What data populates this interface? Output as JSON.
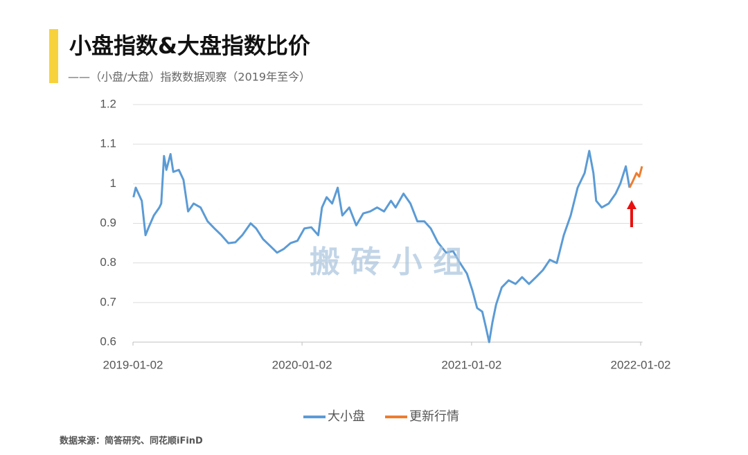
{
  "title": "小盘指数&大盘指数比价",
  "subtitle": "——（小盘/大盘）指数数据观察（2019年至今）",
  "source": "数据来源：简答研究、同花顺iFinD",
  "chart_data": {
    "type": "line",
    "watermark": "搬 砖 小 组",
    "xlim": [
      "2019-01-02",
      "2022-01-06"
    ],
    "xticks": [
      "2019-01-02",
      "2020-01-02",
      "2021-01-02",
      "2022-01-02"
    ],
    "ylim": [
      0.6,
      1.2
    ],
    "yticks": [
      0.6,
      0.7,
      0.8,
      0.9,
      1,
      1.1,
      1.2
    ],
    "grid": true,
    "legend": "bottom",
    "series": [
      {
        "name": "大小盘",
        "color": "#5b9bd5",
        "x": [
          "2019-01-03",
          "2019-01-08",
          "2019-01-21",
          "2019-01-29",
          "2019-02-05",
          "2019-02-16",
          "2019-02-28",
          "2019-03-04",
          "2019-03-10",
          "2019-03-15",
          "2019-03-24",
          "2019-03-30",
          "2019-04-11",
          "2019-04-21",
          "2019-05-01",
          "2019-05-13",
          "2019-05-28",
          "2019-06-12",
          "2019-06-27",
          "2019-07-12",
          "2019-07-27",
          "2019-08-11",
          "2019-08-26",
          "2019-09-13",
          "2019-09-25",
          "2019-10-10",
          "2019-10-25",
          "2019-11-09",
          "2019-11-23",
          "2019-12-08",
          "2019-12-23",
          "2020-01-07",
          "2020-01-22",
          "2020-02-06",
          "2020-02-14",
          "2020-02-24",
          "2020-03-07",
          "2020-03-19",
          "2020-03-29",
          "2020-04-13",
          "2020-04-28",
          "2020-05-13",
          "2020-05-28",
          "2020-06-12",
          "2020-06-27",
          "2020-07-12",
          "2020-07-22",
          "2020-08-08",
          "2020-08-23",
          "2020-09-07",
          "2020-09-22",
          "2020-10-06",
          "2020-10-21",
          "2020-11-08",
          "2020-11-23",
          "2020-12-08",
          "2020-12-23",
          "2021-01-04",
          "2021-01-14",
          "2021-01-25",
          "2021-02-01",
          "2021-02-09",
          "2021-02-16",
          "2021-02-24",
          "2021-03-08",
          "2021-03-23",
          "2021-04-07",
          "2021-04-21",
          "2021-05-06",
          "2021-05-21",
          "2021-06-05",
          "2021-06-20",
          "2021-07-05",
          "2021-07-20",
          "2021-08-04",
          "2021-08-19",
          "2021-09-03",
          "2021-09-13",
          "2021-09-22",
          "2021-09-28",
          "2021-10-10",
          "2021-10-25",
          "2021-11-09",
          "2021-11-19",
          "2021-12-01",
          "2021-12-09"
        ],
        "values": [
          0.966,
          0.99,
          0.957,
          0.87,
          0.89,
          0.92,
          0.94,
          0.95,
          1.07,
          1.035,
          1.075,
          1.03,
          1.035,
          1.01,
          0.93,
          0.95,
          0.94,
          0.905,
          0.887,
          0.87,
          0.85,
          0.852,
          0.87,
          0.9,
          0.887,
          0.86,
          0.843,
          0.826,
          0.835,
          0.85,
          0.856,
          0.887,
          0.89,
          0.87,
          0.94,
          0.966,
          0.95,
          0.99,
          0.92,
          0.94,
          0.895,
          0.925,
          0.93,
          0.94,
          0.93,
          0.957,
          0.94,
          0.975,
          0.95,
          0.905,
          0.905,
          0.887,
          0.852,
          0.826,
          0.83,
          0.8,
          0.773,
          0.73,
          0.686,
          0.677,
          0.642,
          0.6,
          0.65,
          0.695,
          0.738,
          0.756,
          0.747,
          0.764,
          0.747,
          0.764,
          0.782,
          0.808,
          0.8,
          0.87,
          0.92,
          0.99,
          1.027,
          1.083,
          1.027,
          0.957,
          0.94,
          0.95,
          0.975,
          1.0,
          1.044,
          0.99
        ]
      },
      {
        "name": "更新行情",
        "color": "#ed7d31",
        "x": [
          "2021-12-09",
          "2021-12-16",
          "2021-12-24",
          "2021-12-30",
          "2022-01-05"
        ],
        "values": [
          0.99,
          1.006,
          1.027,
          1.018,
          1.044
        ]
      }
    ]
  }
}
